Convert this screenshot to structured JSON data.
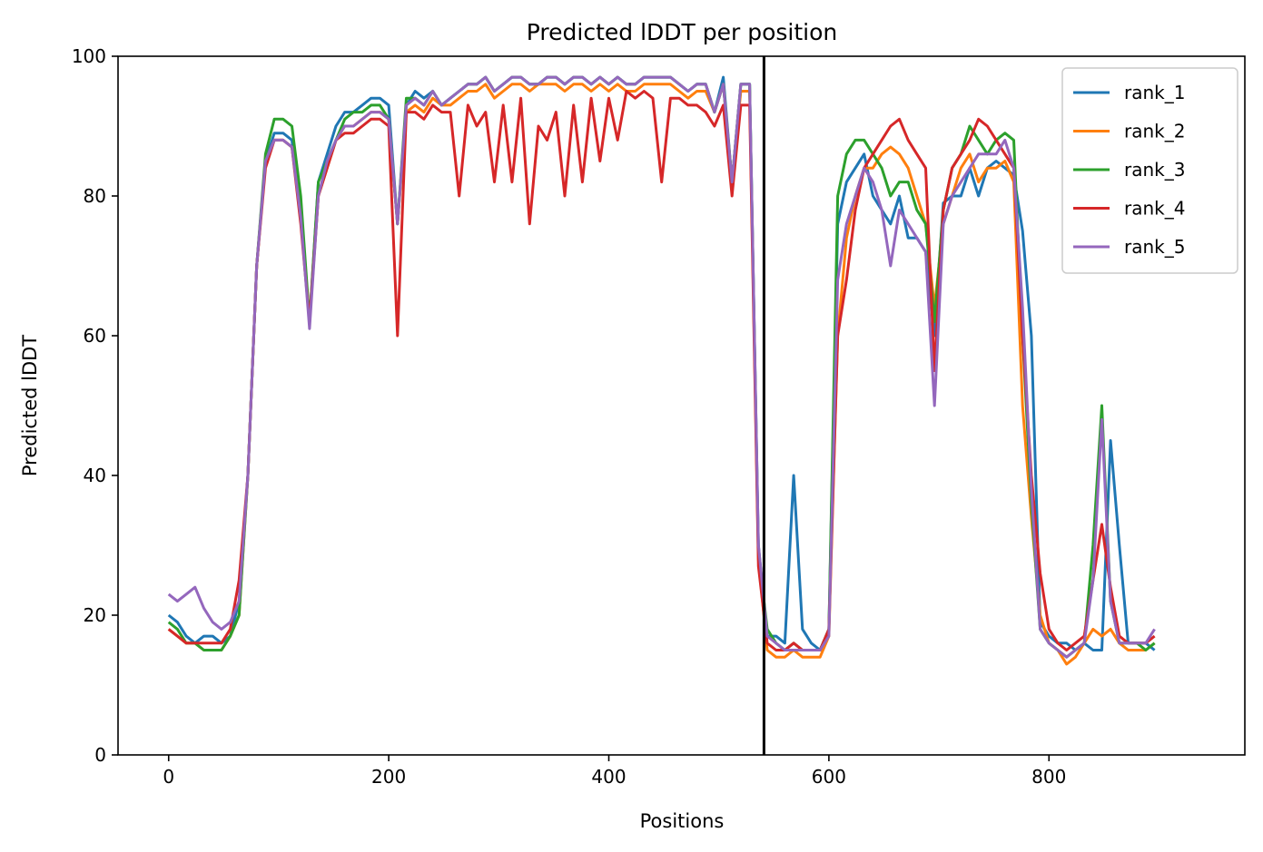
{
  "chart_data": {
    "type": "line",
    "title": "Predicted lDDT per position",
    "xlabel": "Positions",
    "ylabel": "Predicted lDDT",
    "xlim": [
      -46,
      978
    ],
    "ylim": [
      0,
      100
    ],
    "xticks": [
      0,
      200,
      400,
      600,
      800
    ],
    "yticks": [
      0,
      20,
      40,
      60,
      80,
      100
    ],
    "grid": false,
    "legend_position": "top-right",
    "vline_x": 541,
    "vline_color": "#000000",
    "x_step": 8,
    "series": [
      {
        "name": "rank_1",
        "color": "#1f77b4",
        "values": [
          20,
          19,
          17,
          16,
          17,
          17,
          16,
          17,
          22,
          40,
          70,
          85,
          89,
          89,
          88,
          78,
          62,
          82,
          86,
          90,
          92,
          92,
          93,
          94,
          94,
          93,
          76,
          93,
          95,
          94,
          95,
          93,
          94,
          95,
          96,
          96,
          97,
          95,
          96,
          97,
          97,
          96,
          96,
          97,
          97,
          96,
          97,
          97,
          96,
          97,
          96,
          97,
          96,
          96,
          97,
          97,
          97,
          97,
          96,
          95,
          96,
          96,
          92,
          97,
          82,
          96,
          96,
          30,
          17,
          17,
          16,
          40,
          18,
          16,
          15,
          18,
          76,
          82,
          84,
          86,
          80,
          78,
          76,
          80,
          74,
          74,
          72,
          60,
          79,
          80,
          80,
          84,
          80,
          84,
          85,
          84,
          83,
          75,
          60,
          19,
          17,
          16,
          16,
          15,
          16,
          15,
          15,
          45,
          30,
          16,
          16,
          16,
          15
        ]
      },
      {
        "name": "rank_2",
        "color": "#ff7f0e",
        "values": [
          18,
          17,
          16,
          16,
          15,
          15,
          15,
          17,
          20,
          40,
          70,
          85,
          88,
          88,
          87,
          77,
          62,
          80,
          84,
          88,
          90,
          90,
          91,
          92,
          92,
          91,
          76,
          92,
          93,
          92,
          94,
          93,
          93,
          94,
          95,
          95,
          96,
          94,
          95,
          96,
          96,
          95,
          96,
          96,
          96,
          95,
          96,
          96,
          95,
          96,
          95,
          96,
          95,
          95,
          96,
          96,
          96,
          96,
          95,
          94,
          95,
          95,
          92,
          96,
          82,
          95,
          95,
          28,
          15,
          14,
          14,
          15,
          14,
          14,
          14,
          17,
          60,
          74,
          80,
          84,
          84,
          86,
          87,
          86,
          84,
          80,
          76,
          64,
          76,
          80,
          84,
          86,
          82,
          84,
          84,
          85,
          82,
          50,
          34,
          20,
          16,
          15,
          13,
          14,
          16,
          18,
          17,
          18,
          16,
          15,
          15,
          15,
          16
        ]
      },
      {
        "name": "rank_3",
        "color": "#2ca02c",
        "values": [
          19,
          18,
          16,
          16,
          15,
          15,
          15,
          17,
          20,
          40,
          70,
          86,
          91,
          91,
          90,
          80,
          62,
          82,
          85,
          88,
          91,
          92,
          92,
          93,
          93,
          91,
          76,
          94,
          94,
          93,
          95,
          93,
          94,
          95,
          96,
          96,
          97,
          95,
          96,
          97,
          97,
          96,
          96,
          97,
          97,
          96,
          97,
          97,
          96,
          97,
          96,
          97,
          96,
          96,
          97,
          97,
          97,
          97,
          96,
          95,
          96,
          96,
          92,
          96,
          82,
          96,
          96,
          29,
          18,
          16,
          15,
          16,
          15,
          15,
          15,
          18,
          80,
          86,
          88,
          88,
          86,
          84,
          80,
          82,
          82,
          78,
          76,
          62,
          78,
          84,
          86,
          90,
          88,
          86,
          88,
          89,
          88,
          60,
          36,
          18,
          16,
          15,
          14,
          15,
          16,
          30,
          50,
          22,
          16,
          16,
          16,
          15,
          16
        ]
      },
      {
        "name": "rank_4",
        "color": "#d62728",
        "values": [
          18,
          17,
          16,
          16,
          16,
          16,
          16,
          18,
          25,
          40,
          70,
          84,
          88,
          88,
          87,
          76,
          62,
          80,
          84,
          88,
          89,
          89,
          90,
          91,
          91,
          90,
          60,
          92,
          92,
          91,
          93,
          92,
          92,
          80,
          93,
          90,
          92,
          82,
          93,
          82,
          94,
          76,
          90,
          88,
          92,
          80,
          93,
          82,
          94,
          85,
          94,
          88,
          95,
          94,
          95,
          94,
          82,
          94,
          94,
          93,
          93,
          92,
          90,
          93,
          80,
          93,
          93,
          27,
          16,
          15,
          15,
          16,
          15,
          15,
          15,
          18,
          60,
          68,
          78,
          84,
          86,
          88,
          90,
          91,
          88,
          86,
          84,
          55,
          78,
          84,
          86,
          88,
          91,
          90,
          88,
          86,
          84,
          60,
          40,
          26,
          18,
          16,
          15,
          16,
          17,
          25,
          33,
          24,
          17,
          16,
          16,
          16,
          17
        ]
      },
      {
        "name": "rank_5",
        "color": "#9467bd",
        "values": [
          23,
          22,
          23,
          24,
          21,
          19,
          18,
          19,
          22,
          40,
          70,
          85,
          88,
          88,
          87,
          77,
          61,
          80,
          85,
          88,
          90,
          90,
          91,
          92,
          92,
          91,
          76,
          93,
          94,
          93,
          95,
          93,
          94,
          95,
          96,
          96,
          97,
          95,
          96,
          97,
          97,
          96,
          96,
          97,
          97,
          96,
          97,
          97,
          96,
          97,
          96,
          97,
          96,
          96,
          97,
          97,
          97,
          97,
          96,
          95,
          96,
          96,
          92,
          96,
          82,
          96,
          96,
          30,
          17,
          16,
          15,
          15,
          15,
          15,
          15,
          17,
          68,
          76,
          80,
          84,
          82,
          78,
          70,
          78,
          76,
          74,
          72,
          50,
          76,
          80,
          82,
          84,
          86,
          86,
          86,
          88,
          84,
          64,
          38,
          18,
          16,
          15,
          14,
          15,
          16,
          25,
          48,
          22,
          16,
          16,
          16,
          16,
          18
        ]
      }
    ]
  }
}
